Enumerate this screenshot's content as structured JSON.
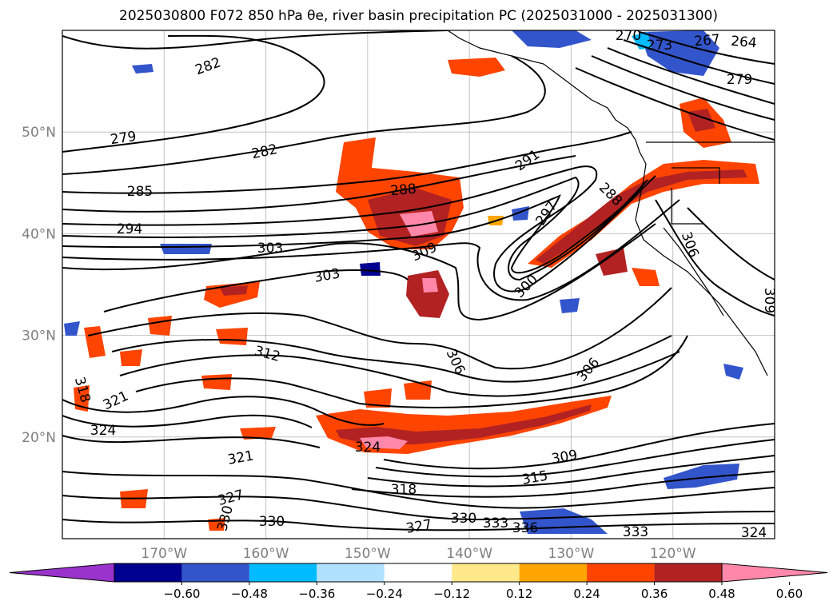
{
  "title_text": "2025030800 F072 850 hPa θe, river basin precipitation PC (2025031000 - 2025031300)",
  "map": {
    "lon_range": [
      -180,
      -110
    ],
    "lat_range": [
      10,
      60
    ],
    "lon_ticks": [
      {
        "value": -170,
        "label": "170°W"
      },
      {
        "value": -160,
        "label": "160°W"
      },
      {
        "value": -150,
        "label": "150°W"
      },
      {
        "value": -140,
        "label": "140°W"
      },
      {
        "value": -130,
        "label": "130°W"
      },
      {
        "value": -120,
        "label": "120°W"
      }
    ],
    "lat_ticks": [
      {
        "value": 50,
        "label": "50°N"
      },
      {
        "value": 40,
        "label": "40°N"
      },
      {
        "value": 30,
        "label": "30°N"
      },
      {
        "value": 20,
        "label": "20°N"
      }
    ],
    "contour_labels": [
      "282",
      "279",
      "282",
      "285",
      "294",
      "303",
      "303",
      "288",
      "309",
      "291",
      "297",
      "288",
      "300",
      "306",
      "309",
      "312",
      "306",
      "306",
      "318",
      "321",
      "324",
      "321",
      "324",
      "327",
      "330",
      "330",
      "309",
      "315",
      "318",
      "327",
      "330",
      "333",
      "336",
      "333",
      "324",
      "267",
      "264",
      "273",
      "270",
      "279"
    ]
  },
  "colorbar": {
    "tick_labels": [
      "−0.60",
      "−0.48",
      "−0.36",
      "−0.24",
      "−0.12",
      "0.12",
      "0.24",
      "0.36",
      "0.48",
      "0.60"
    ],
    "colors": [
      "#9933cc",
      "#000090",
      "#3355cc",
      "#00bbff",
      "#b0e2ff",
      "#ffffff",
      "#ffe98a",
      "#ffa500",
      "#ff4400",
      "#b22222",
      "#ff88aa"
    ]
  }
}
